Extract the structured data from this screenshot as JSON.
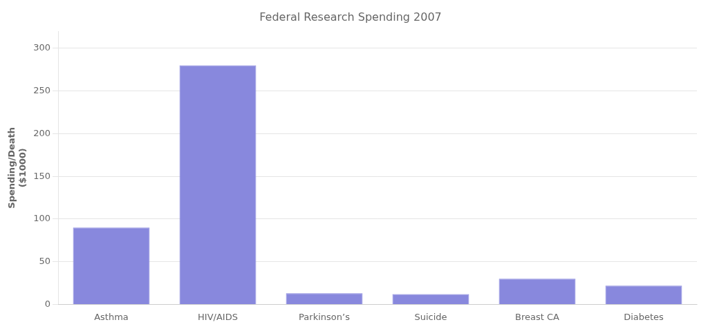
{
  "chart_data": {
    "type": "bar",
    "title": "Federal Research Spending 2007",
    "categories": [
      "Asthma",
      "HIV/AIDS",
      "Parkinson’s",
      "Suicide",
      "Breast CA",
      "Diabetes"
    ],
    "values": [
      90,
      280,
      13,
      12,
      30,
      22
    ],
    "color": "#8888DD",
    "ylabel": "Spending/Death\n($1000)",
    "ylim": [
      0,
      320
    ],
    "yticks": [
      0,
      50,
      100,
      150,
      200,
      250,
      300
    ],
    "grid": true
  }
}
